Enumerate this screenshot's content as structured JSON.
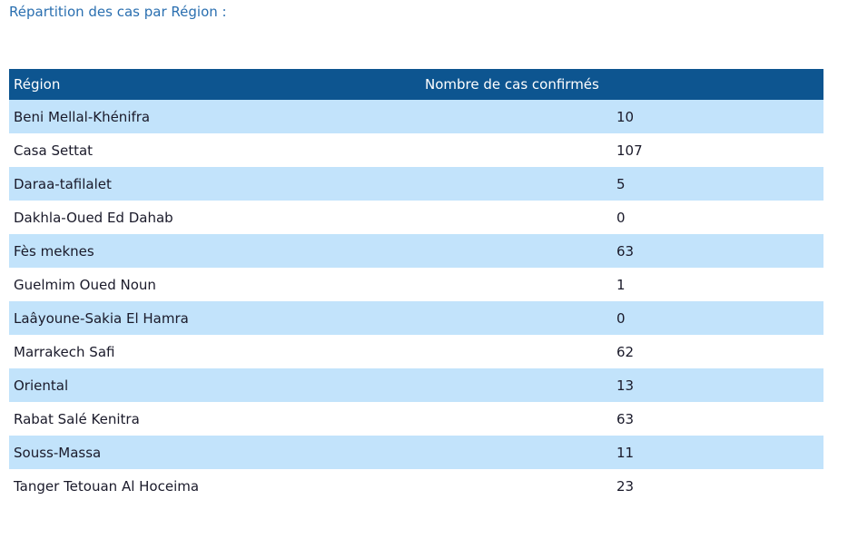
{
  "page": {
    "heading": "Répartition des cas par Région :"
  },
  "table": {
    "headers": {
      "region": "Région",
      "count": "Nombre de cas confirmés"
    },
    "rows": [
      {
        "region": "Beni Mellal-Khénifra",
        "count": "10"
      },
      {
        "region": "Casa Settat",
        "count": "107"
      },
      {
        "region": "Daraa-tafilalet",
        "count": "5"
      },
      {
        "region": "Dakhla-Oued Ed Dahab",
        "count": "0"
      },
      {
        "region": "Fès meknes",
        "count": "63"
      },
      {
        "region": "Guelmim Oued Noun",
        "count": "1"
      },
      {
        "region": "Laâyoune-Sakia El Hamra",
        "count": "0"
      },
      {
        "region": "Marrakech Safi",
        "count": "62"
      },
      {
        "region": "Oriental",
        "count": "13"
      },
      {
        "region": "Rabat Salé Kenitra",
        "count": "63"
      },
      {
        "region": "Souss-Massa",
        "count": "11"
      },
      {
        "region": "Tanger Tetouan Al Hoceima",
        "count": "23"
      }
    ]
  },
  "colors": {
    "heading": "#2a6fb0",
    "header_bg": "#0d5590",
    "alt_row_bg": "#c2e3fb"
  }
}
